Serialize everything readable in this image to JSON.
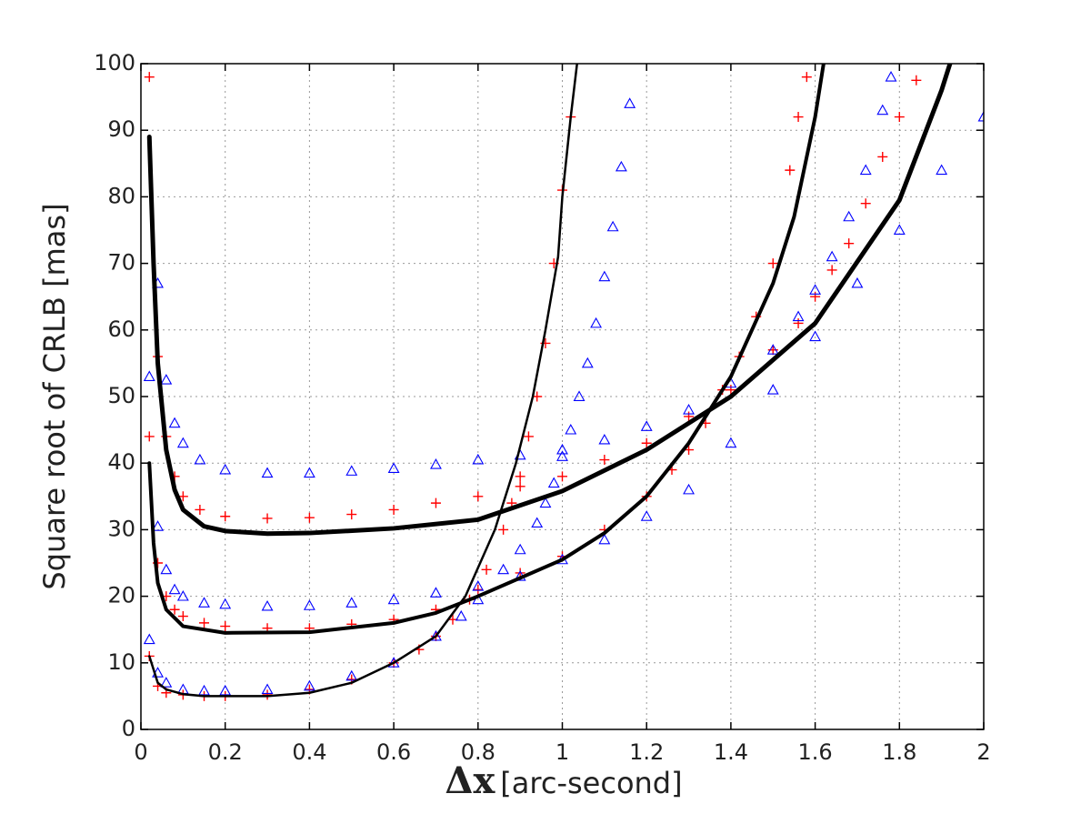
{
  "chart_data": {
    "type": "line",
    "ylabel": "Square root of CRLB [mas]",
    "xlabel_symbol": "Δx",
    "xlabel_unit": "[arc-second]",
    "xlim": [
      0,
      2
    ],
    "ylim": [
      0,
      100
    ],
    "xticks": [
      0,
      0.2,
      0.4,
      0.6,
      0.8,
      1,
      1.2,
      1.4,
      1.6,
      1.8,
      2
    ],
    "yticks": [
      0,
      10,
      20,
      30,
      40,
      50,
      60,
      70,
      80,
      90,
      100
    ],
    "grid": true,
    "series": [
      {
        "style": "line",
        "color": "#000000",
        "linewidth": 5,
        "x": [
          0.02,
          0.03,
          0.04,
          0.06,
          0.08,
          0.1,
          0.15,
          0.2,
          0.3,
          0.4,
          0.6,
          0.8,
          1.0,
          1.2,
          1.4,
          1.6,
          1.8,
          1.9,
          1.92
        ],
        "values": [
          89,
          70,
          55,
          42,
          36,
          33,
          30.5,
          29.8,
          29.4,
          29.5,
          30.2,
          31.5,
          35.8,
          42,
          50,
          61,
          79.5,
          96,
          100
        ]
      },
      {
        "style": "line",
        "color": "#000000",
        "linewidth": 4,
        "x": [
          0.02,
          0.03,
          0.04,
          0.06,
          0.1,
          0.2,
          0.4,
          0.6,
          0.7,
          0.8,
          1.0,
          1.1,
          1.2,
          1.3,
          1.4,
          1.5,
          1.55,
          1.6,
          1.62
        ],
        "values": [
          40,
          28,
          22,
          18,
          15.5,
          14.5,
          14.6,
          16,
          17.5,
          20,
          25.5,
          29.5,
          35,
          43,
          53,
          67,
          77,
          92,
          100
        ]
      },
      {
        "style": "line",
        "color": "#000000",
        "linewidth": 2.5,
        "x": [
          0.02,
          0.04,
          0.06,
          0.1,
          0.15,
          0.3,
          0.4,
          0.5,
          0.6,
          0.7,
          0.77,
          0.84,
          0.89,
          0.93,
          0.96,
          0.99,
          1.0,
          1.02,
          1.035
        ],
        "values": [
          11,
          7,
          6,
          5.3,
          5,
          5,
          5.5,
          7,
          10,
          14,
          20,
          30,
          40,
          50,
          60,
          71,
          80,
          92,
          100
        ]
      },
      {
        "style": "plus",
        "color": "#ff0000",
        "x": [
          0.02,
          0.04,
          0.06,
          0.08,
          0.1,
          0.14,
          0.2,
          0.3,
          0.4,
          0.5,
          0.6,
          0.7,
          0.8,
          0.9,
          1.0,
          1.1,
          1.2,
          1.3,
          1.4,
          1.5,
          1.56,
          1.6,
          1.64,
          1.68,
          1.72,
          1.76,
          1.8,
          1.84
        ],
        "values": [
          98,
          56,
          44,
          38,
          35,
          33,
          32,
          31.7,
          31.8,
          32.3,
          33,
          34,
          35,
          36.5,
          38,
          40.5,
          43,
          47,
          51,
          57,
          61,
          65,
          69,
          73,
          79,
          86,
          92,
          97.5
        ]
      },
      {
        "style": "plus",
        "color": "#ff0000",
        "x": [
          0.02,
          0.04,
          0.06,
          0.08,
          0.1,
          0.15,
          0.2,
          0.3,
          0.4,
          0.5,
          0.6,
          0.7,
          0.8,
          0.9,
          1.0,
          1.1,
          1.2,
          1.26,
          1.3,
          1.34,
          1.38,
          1.42,
          1.46,
          1.5,
          1.54,
          1.56,
          1.58
        ],
        "values": [
          44,
          25,
          20,
          18,
          17,
          16,
          15.5,
          15.2,
          15.2,
          15.8,
          16.5,
          18,
          21,
          23.5,
          26,
          30,
          35,
          39,
          42,
          46,
          51,
          56,
          62,
          70,
          84,
          92,
          98
        ]
      },
      {
        "style": "plus",
        "color": "#ff0000",
        "x": [
          0.02,
          0.04,
          0.06,
          0.1,
          0.15,
          0.2,
          0.3,
          0.4,
          0.5,
          0.6,
          0.66,
          0.7,
          0.74,
          0.78,
          0.82,
          0.86,
          0.88,
          0.9,
          0.92,
          0.94,
          0.96,
          0.98,
          1.0,
          1.02
        ],
        "values": [
          11,
          6.5,
          5.5,
          5.2,
          5,
          5,
          5.2,
          6,
          7.5,
          10,
          12,
          14,
          16.5,
          19.5,
          24,
          30,
          34,
          38,
          44,
          50,
          58,
          70,
          81,
          92
        ]
      },
      {
        "style": "triangle",
        "color": "#0000ff",
        "x": [
          0.02,
          0.04,
          0.06,
          0.08,
          0.1,
          0.14,
          0.2,
          0.3,
          0.4,
          0.5,
          0.6,
          0.7,
          0.8,
          0.9,
          1.0,
          1.1,
          1.2,
          1.3,
          1.4,
          1.5,
          1.56,
          1.6,
          1.64,
          1.68,
          1.72,
          1.76,
          1.78
        ],
        "values": [
          53,
          67,
          52.5,
          46,
          43,
          40.5,
          39,
          38.5,
          38.5,
          38.8,
          39.2,
          39.8,
          40.5,
          41.2,
          42,
          43.5,
          45.5,
          48,
          52,
          57,
          62,
          66,
          71,
          77,
          84,
          93,
          98
        ]
      },
      {
        "style": "triangle",
        "color": "#0000ff",
        "x": [
          0.04,
          0.06,
          0.08,
          0.1,
          0.15,
          0.2,
          0.3,
          0.4,
          0.5,
          0.6,
          0.7,
          0.8,
          0.9,
          1.0,
          1.1,
          1.2,
          1.3,
          1.4,
          1.5,
          1.6,
          1.7,
          1.8,
          1.9,
          2.0
        ],
        "values": [
          30.5,
          24,
          21,
          20,
          19,
          18.8,
          18.5,
          18.6,
          19,
          19.5,
          20.5,
          21.5,
          23,
          25.5,
          28.5,
          32,
          36,
          43,
          51,
          59,
          67,
          75,
          84,
          92
        ]
      },
      {
        "style": "triangle",
        "color": "#0000ff",
        "x": [
          0.02,
          0.04,
          0.06,
          0.1,
          0.15,
          0.2,
          0.3,
          0.4,
          0.5,
          0.6,
          0.7,
          0.76,
          0.8,
          0.86,
          0.9,
          0.94,
          0.96,
          0.98,
          1.0,
          1.02,
          1.04,
          1.06,
          1.08,
          1.1,
          1.12,
          1.14,
          1.16
        ],
        "values": [
          13.5,
          8.5,
          7,
          6,
          5.8,
          5.8,
          6,
          6.5,
          8,
          10,
          14,
          17,
          19.5,
          24,
          27,
          31,
          34,
          37,
          41,
          45,
          50,
          55,
          61,
          68,
          75.5,
          84.5,
          94
        ]
      }
    ]
  }
}
